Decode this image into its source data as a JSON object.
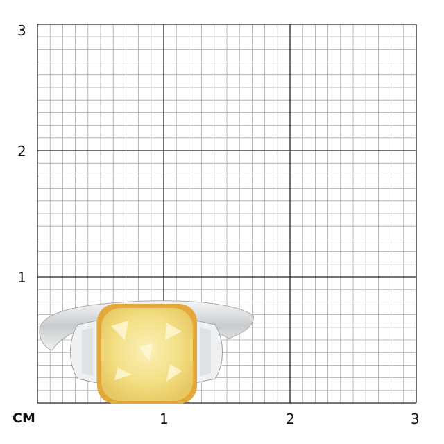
{
  "scale": {
    "unit_label": "CM",
    "x_ticks": [
      "1",
      "2",
      "3"
    ],
    "y_ticks": [
      "1",
      "2",
      "3"
    ],
    "range_cm": [
      0,
      3
    ],
    "minor_divisions_per_cm": 10
  },
  "subject": {
    "center_stone_color": "#f3e08a",
    "setting_color": "#e2a93a",
    "band_color": "#d6d8da",
    "side_stone_color": "#eef0f2"
  },
  "colors": {
    "major_grid": "#222222",
    "minor_grid": "#a8a8a8"
  }
}
